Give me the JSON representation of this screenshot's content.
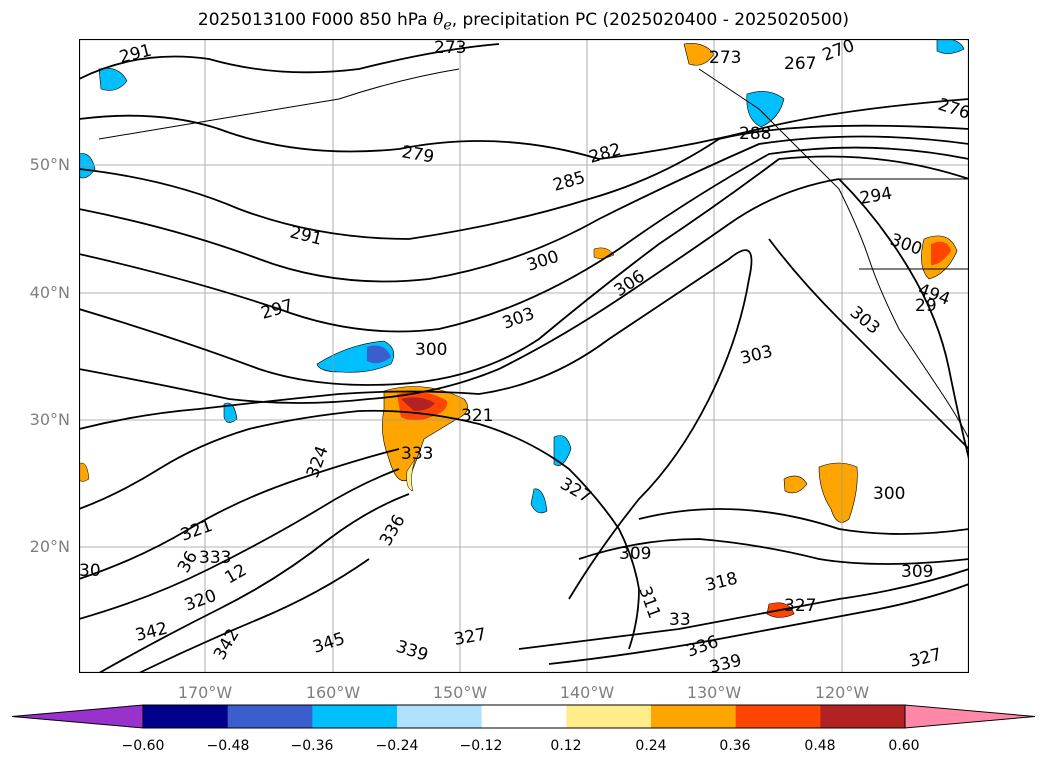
{
  "title_prefix": "2025013100 F000 850 hPa ",
  "title_symbol": "θ",
  "title_symbol_sub": "e",
  "title_suffix": ", precipitation PC (2025020400 - 2025020500)",
  "lat_labels": [
    "50°N",
    "40°N",
    "30°N",
    "20°N"
  ],
  "lon_labels": [
    "170°W",
    "160°W",
    "150°W",
    "140°W",
    "130°W",
    "120°W"
  ],
  "colorbar": {
    "ticks": [
      "−0.60",
      "−0.48",
      "−0.36",
      "−0.24",
      "−0.12",
      "0.12",
      "0.24",
      "0.36",
      "0.48",
      "0.60"
    ],
    "colors": [
      "#9932CC",
      "#00008B",
      "#3A5FCD",
      "#00BFFF",
      "#B0E2FF",
      "#FFFFFF",
      "#FFEC8B",
      "#FFA500",
      "#FF4500",
      "#B22222",
      "#FF88A8"
    ]
  },
  "contour_labels": [
    "291",
    "273",
    "273",
    "267",
    "270",
    "276",
    "288",
    "279",
    "282",
    "285",
    "294",
    "291",
    "300",
    "300",
    "306",
    "297",
    "303",
    "494",
    "29",
    "303",
    "300",
    "303",
    "321",
    "324",
    "333",
    "327",
    "300",
    "321",
    "333",
    "30",
    "36",
    "12",
    "336",
    "309",
    "318",
    "309",
    "311",
    "327",
    "320",
    "342",
    "342",
    "345",
    "339",
    "327",
    "336",
    "339",
    "327",
    "33"
  ]
}
